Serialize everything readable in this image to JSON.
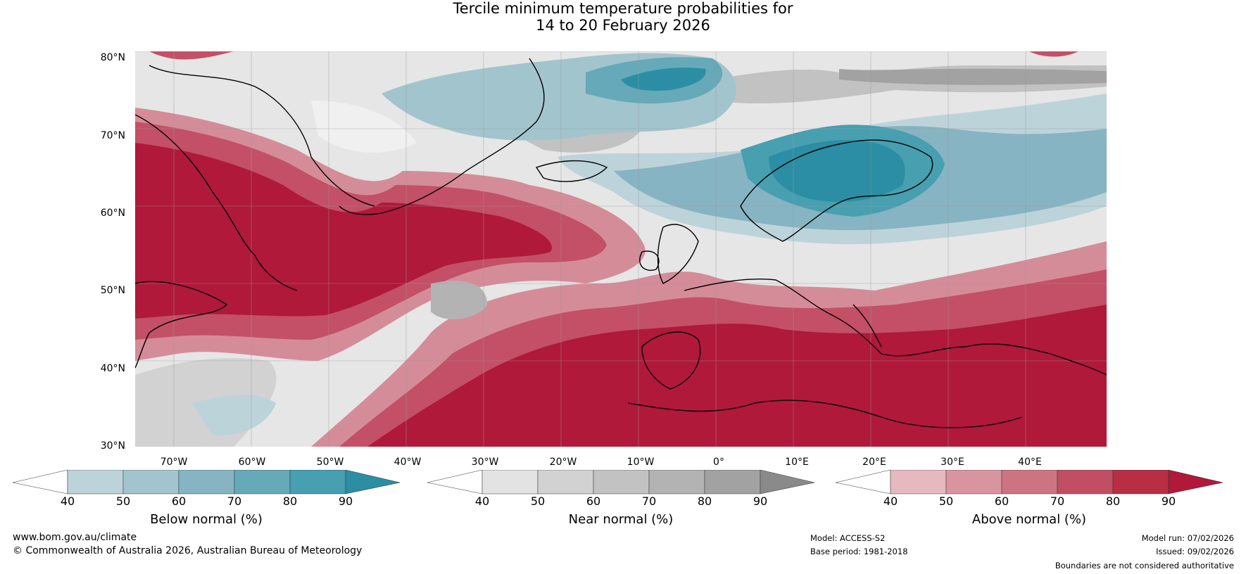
{
  "title": {
    "line1": "Tercile minimum temperature probabilities for",
    "line2": "14 to 20 February 2026"
  },
  "map": {
    "lat_labels": [
      "80°N",
      "70°N",
      "60°N",
      "50°N",
      "40°N",
      "30°N"
    ],
    "lon_labels": [
      "70°W",
      "60°W",
      "50°W",
      "40°W",
      "30°W",
      "20°W",
      "10°W",
      "0°",
      "10°E",
      "20°E",
      "30°E",
      "40°E"
    ]
  },
  "colorbars": [
    {
      "label": "Below normal (%)",
      "ticks": [
        "40",
        "50",
        "60",
        "70",
        "80",
        "90"
      ],
      "colors": [
        "#ffffff",
        "#bdd3da",
        "#a2c4cd",
        "#86b4c2",
        "#66a9b8",
        "#479fb0",
        "#2b8ea4"
      ]
    },
    {
      "label": "Near normal (%)",
      "ticks": [
        "40",
        "50",
        "60",
        "70",
        "80",
        "90"
      ],
      "colors": [
        "#ffffff",
        "#e3e3e3",
        "#d2d2d2",
        "#c2c2c2",
        "#b3b3b3",
        "#a2a2a2",
        "#8a8a8a"
      ]
    },
    {
      "label": "Above normal (%)",
      "ticks": [
        "40",
        "50",
        "60",
        "70",
        "80",
        "90"
      ],
      "colors": [
        "#ffffff",
        "#e6b9c1",
        "#d9959f",
        "#cd7482",
        "#c14e62",
        "#b82e45",
        "#b0193a"
      ]
    }
  ],
  "footer": {
    "website": "www.bom.gov.au/climate",
    "copyright": "© Commonwealth of Australia 2026, Australian Bureau of Meteorology",
    "model": "Model: ACCESS-S2",
    "base_period": "Base period: 1981-2018",
    "model_run": "Model run: 07/02/2026",
    "issued": "Issued: 09/02/2026",
    "disclaimer": "Boundaries are not considered authoritative"
  }
}
